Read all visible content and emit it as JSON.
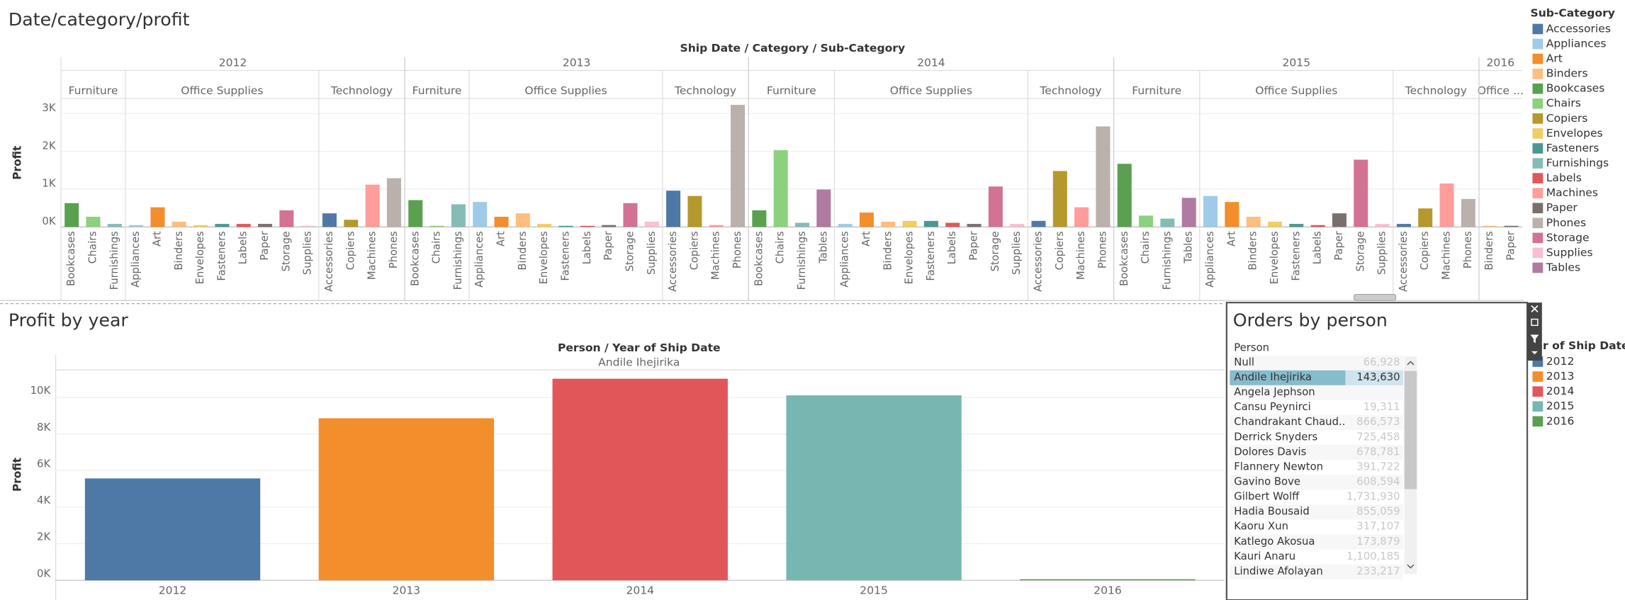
{
  "chart_data": [
    {
      "type": "bar",
      "title": "Date/category/profit",
      "header": "Ship Date / Category / Sub-Category",
      "y_label": "Profit",
      "ylim": [
        0,
        3400
      ],
      "yticks": [
        {
          "value": 0,
          "label": "0K"
        },
        {
          "value": 1000,
          "label": "1K"
        },
        {
          "value": 2000,
          "label": "2K"
        },
        {
          "value": 3000,
          "label": "3K"
        }
      ],
      "grid": true,
      "years": [
        {
          "label": "2012",
          "categories": [
            {
              "label": "Furniture",
              "subcategories": [
                "Bookcases",
                "Chairs",
                "Furnishings"
              ],
              "values": [
                630,
                270,
                80
              ]
            },
            {
              "label": "Office Supplies",
              "subcategories": [
                "Appliances",
                "Art",
                "Binders",
                "Envelopes",
                "Fasteners",
                "Labels",
                "Paper",
                "Storage",
                "Supplies"
              ],
              "values": [
                50,
                520,
                140,
                50,
                80,
                80,
                80,
                440,
                30
              ]
            },
            {
              "label": "Technology",
              "subcategories": [
                "Accessories",
                "Copiers",
                "Machines",
                "Phones"
              ],
              "values": [
                360,
                190,
                1120,
                1290
              ]
            }
          ]
        },
        {
          "label": "2013",
          "categories": [
            {
              "label": "Furniture",
              "subcategories": [
                "Bookcases",
                "Chairs",
                "Furnishings"
              ],
              "values": [
                710,
                30,
                600
              ]
            },
            {
              "label": "Office Supplies",
              "subcategories": [
                "Appliances",
                "Art",
                "Binders",
                "Envelopes",
                "Fasteners",
                "Labels",
                "Paper",
                "Storage",
                "Supplies"
              ],
              "values": [
                660,
                270,
                360,
                80,
                30,
                30,
                50,
                630,
                140
              ]
            },
            {
              "label": "Technology",
              "subcategories": [
                "Accessories",
                "Copiers",
                "Machines",
                "Phones"
              ],
              "values": [
                960,
                820,
                50,
                3230
              ]
            }
          ]
        },
        {
          "label": "2014",
          "categories": [
            {
              "label": "Furniture",
              "subcategories": [
                "Bookcases",
                "Chairs",
                "Furnishings",
                "Tables"
              ],
              "values": [
                440,
                2030,
                110,
                990
              ]
            },
            {
              "label": "Office Supplies",
              "subcategories": [
                "Appliances",
                "Art",
                "Binders",
                "Envelopes",
                "Fasteners",
                "Labels",
                "Paper",
                "Storage",
                "Supplies"
              ],
              "values": [
                80,
                380,
                140,
                160,
                160,
                110,
                80,
                1070,
                80
              ]
            },
            {
              "label": "Technology",
              "subcategories": [
                "Accessories",
                "Copiers",
                "Machines",
                "Phones"
              ],
              "values": [
                160,
                1480,
                520,
                2660
              ]
            }
          ]
        },
        {
          "label": "2015",
          "categories": [
            {
              "label": "Furniture",
              "subcategories": [
                "Bookcases",
                "Chairs",
                "Furnishings",
                "Tables"
              ],
              "values": [
                1670,
                300,
                220,
                770
              ]
            },
            {
              "label": "Office Supplies",
              "subcategories": [
                "Appliances",
                "Art",
                "Binders",
                "Envelopes",
                "Fasteners",
                "Labels",
                "Paper",
                "Storage",
                "Supplies"
              ],
              "values": [
                820,
                660,
                270,
                140,
                80,
                50,
                360,
                1780,
                80
              ]
            },
            {
              "label": "Technology",
              "subcategories": [
                "Accessories",
                "Copiers",
                "Machines",
                "Phones"
              ],
              "values": [
                80,
                490,
                1150,
                740
              ]
            }
          ]
        },
        {
          "label": "2016",
          "categories": [
            {
              "label": "Office ...",
              "subcategories": [
                "Binders",
                "Paper"
              ],
              "values": [
                30,
                30
              ]
            }
          ]
        }
      ],
      "legend": {
        "title": "Sub-Category",
        "names": [
          "Accessories",
          "Appliances",
          "Art",
          "Binders",
          "Bookcases",
          "Chairs",
          "Copiers",
          "Envelopes",
          "Fasteners",
          "Furnishings",
          "Labels",
          "Machines",
          "Paper",
          "Phones",
          "Storage",
          "Supplies",
          "Tables"
        ],
        "colors": [
          "#4e79a7",
          "#a0cbe8",
          "#f28e2b",
          "#ffbe7d",
          "#59a14f",
          "#8cd17d",
          "#b6992d",
          "#f1ce63",
          "#499894",
          "#86bcb6",
          "#e15759",
          "#ff9d9a",
          "#79706e",
          "#bab0ac",
          "#d37295",
          "#fabfd2",
          "#b07aa1"
        ]
      }
    },
    {
      "type": "bar",
      "title": "Profit by year",
      "header": "Person / Year of Ship Date",
      "pane_label": "Andile Ihejirika",
      "y_label": "Profit",
      "categories": [
        "2012",
        "2013",
        "2014",
        "2015",
        "2016"
      ],
      "values": [
        5570,
        8860,
        11020,
        10110,
        60
      ],
      "colors": [
        "#4e79a7",
        "#f28e2b",
        "#e15759",
        "#76b7b2",
        "#59a14f"
      ],
      "ylim": [
        0,
        11500
      ],
      "yticks": [
        {
          "value": 0,
          "label": "0K"
        },
        {
          "value": 2000,
          "label": "2K"
        },
        {
          "value": 4000,
          "label": "4K"
        },
        {
          "value": 6000,
          "label": "6K"
        },
        {
          "value": 8000,
          "label": "8K"
        },
        {
          "value": 10000,
          "label": "10K"
        }
      ],
      "grid": true,
      "legend": {
        "title": "Year of Ship Date"
      }
    }
  ],
  "orders_panel": {
    "title": "Orders by person",
    "column_header": "Person",
    "selected": 1,
    "rows": [
      {
        "name": "Null",
        "value": "66,928"
      },
      {
        "name": "Andile Ihejirika",
        "value": "143,630"
      },
      {
        "name": "Angela Jephson",
        "value": null
      },
      {
        "name": "Cansu Peynirci",
        "value": "19,311"
      },
      {
        "name": "Chandrakant Chaud..",
        "value": "866,573"
      },
      {
        "name": "Derrick Snyders",
        "value": "725,458"
      },
      {
        "name": "Dolores Davis",
        "value": "678,781"
      },
      {
        "name": "Flannery Newton",
        "value": "391,722"
      },
      {
        "name": "Gavino Bove",
        "value": "608,594"
      },
      {
        "name": "Gilbert Wolff",
        "value": "1,731,930"
      },
      {
        "name": "Hadia Bousaid",
        "value": "855,059"
      },
      {
        "name": "Kaoru Xun",
        "value": "317,107"
      },
      {
        "name": "Katlego Akosua",
        "value": "173,879"
      },
      {
        "name": "Kauri Anaru",
        "value": "1,100,185"
      },
      {
        "name": "Lindiwe Afolayan",
        "value": "233,217"
      }
    ]
  }
}
